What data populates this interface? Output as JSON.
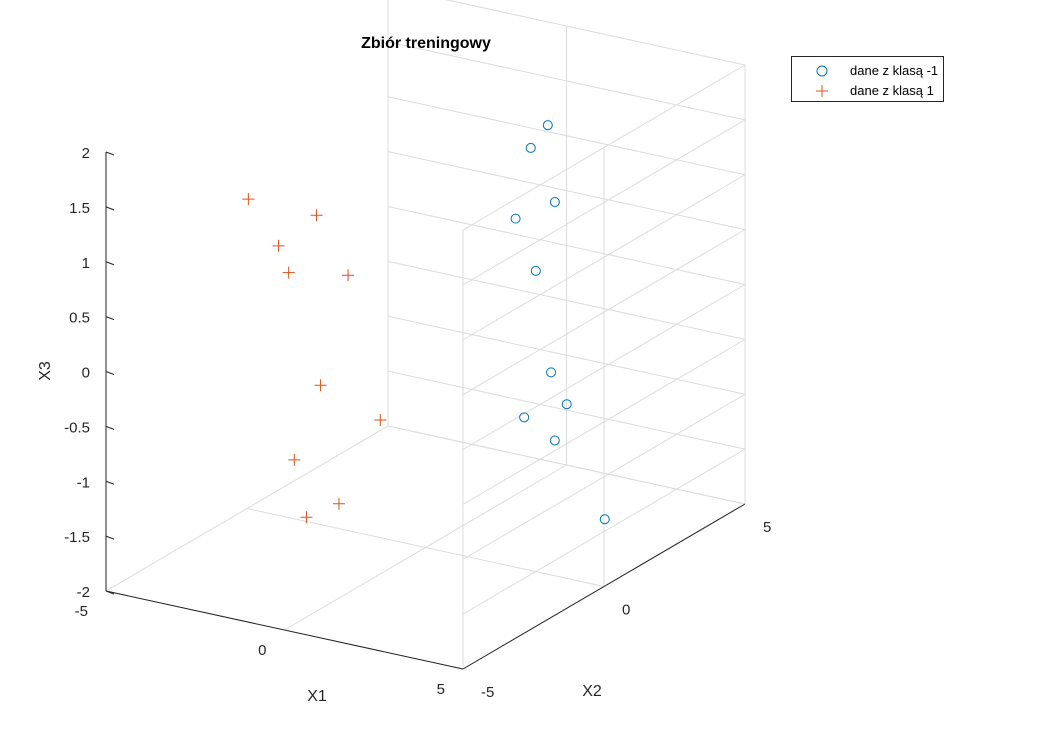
{
  "chart_data": {
    "type": "scatter",
    "title": "Zbiór treningowy",
    "xlabel": "X1",
    "ylabel": "X2",
    "zlabel": "X3",
    "xlim": [
      -5,
      5
    ],
    "ylim": [
      -5,
      5
    ],
    "zlim": [
      -2,
      2
    ],
    "xticks": [
      "-5",
      "0",
      "5"
    ],
    "yticks": [
      "-5",
      "0",
      "5"
    ],
    "zticks": [
      "-2",
      "-1.5",
      "-1",
      "-0.5",
      "0",
      "0.5",
      "1",
      "1.5",
      "2"
    ],
    "grid": true,
    "legend_position": "top-right, outside plot",
    "series": [
      {
        "name": "dane z klasą -1",
        "marker": "o",
        "color": "#0072BD",
        "points": [
          {
            "x": 0.46,
            "y": 3.15,
            "z": 1.2
          },
          {
            "x": 0.78,
            "y": 3.35,
            "z": 1.4
          },
          {
            "x": 1.27,
            "y": 2.98,
            "z": 0.79
          },
          {
            "x": 0.32,
            "y": 2.79,
            "z": 0.6
          },
          {
            "x": 1.1,
            "y": 2.52,
            "z": 0.22
          },
          {
            "x": 1.72,
            "y": 1.32,
            "z": -0.89
          },
          {
            "x": 1.85,
            "y": 2.11,
            "z": -0.59
          },
          {
            "x": 2.58,
            "y": 1.32,
            "z": -1.04
          },
          {
            "x": 2.4,
            "y": 1.97,
            "z": -0.82
          },
          {
            "x": 3.97,
            "y": 1.33,
            "z": -1.66
          }
        ]
      },
      {
        "name": "dane z klasą 1",
        "marker": "+",
        "color": "#D95319",
        "points": [
          {
            "x": -2.75,
            "y": -2.8,
            "z": 1.4
          },
          {
            "x": -1.69,
            "y": -3.07,
            "z": 1.09
          },
          {
            "x": -1.18,
            "y": -2.37,
            "z": 1.3
          },
          {
            "x": -1.7,
            "y": -2.7,
            "z": 0.79
          },
          {
            "x": -0.55,
            "y": -2.05,
            "z": 0.75
          },
          {
            "x": -0.68,
            "y": -2.86,
            "z": -0.14
          },
          {
            "x": -0.87,
            "y": -3.55,
            "z": -0.73
          },
          {
            "x": 0.18,
            "y": -1.83,
            "z": -0.55
          },
          {
            "x": -0.46,
            "y": -3.64,
            "z": -1.21
          },
          {
            "x": 0.04,
            "y": -3.12,
            "z": -1.13
          }
        ]
      }
    ]
  }
}
